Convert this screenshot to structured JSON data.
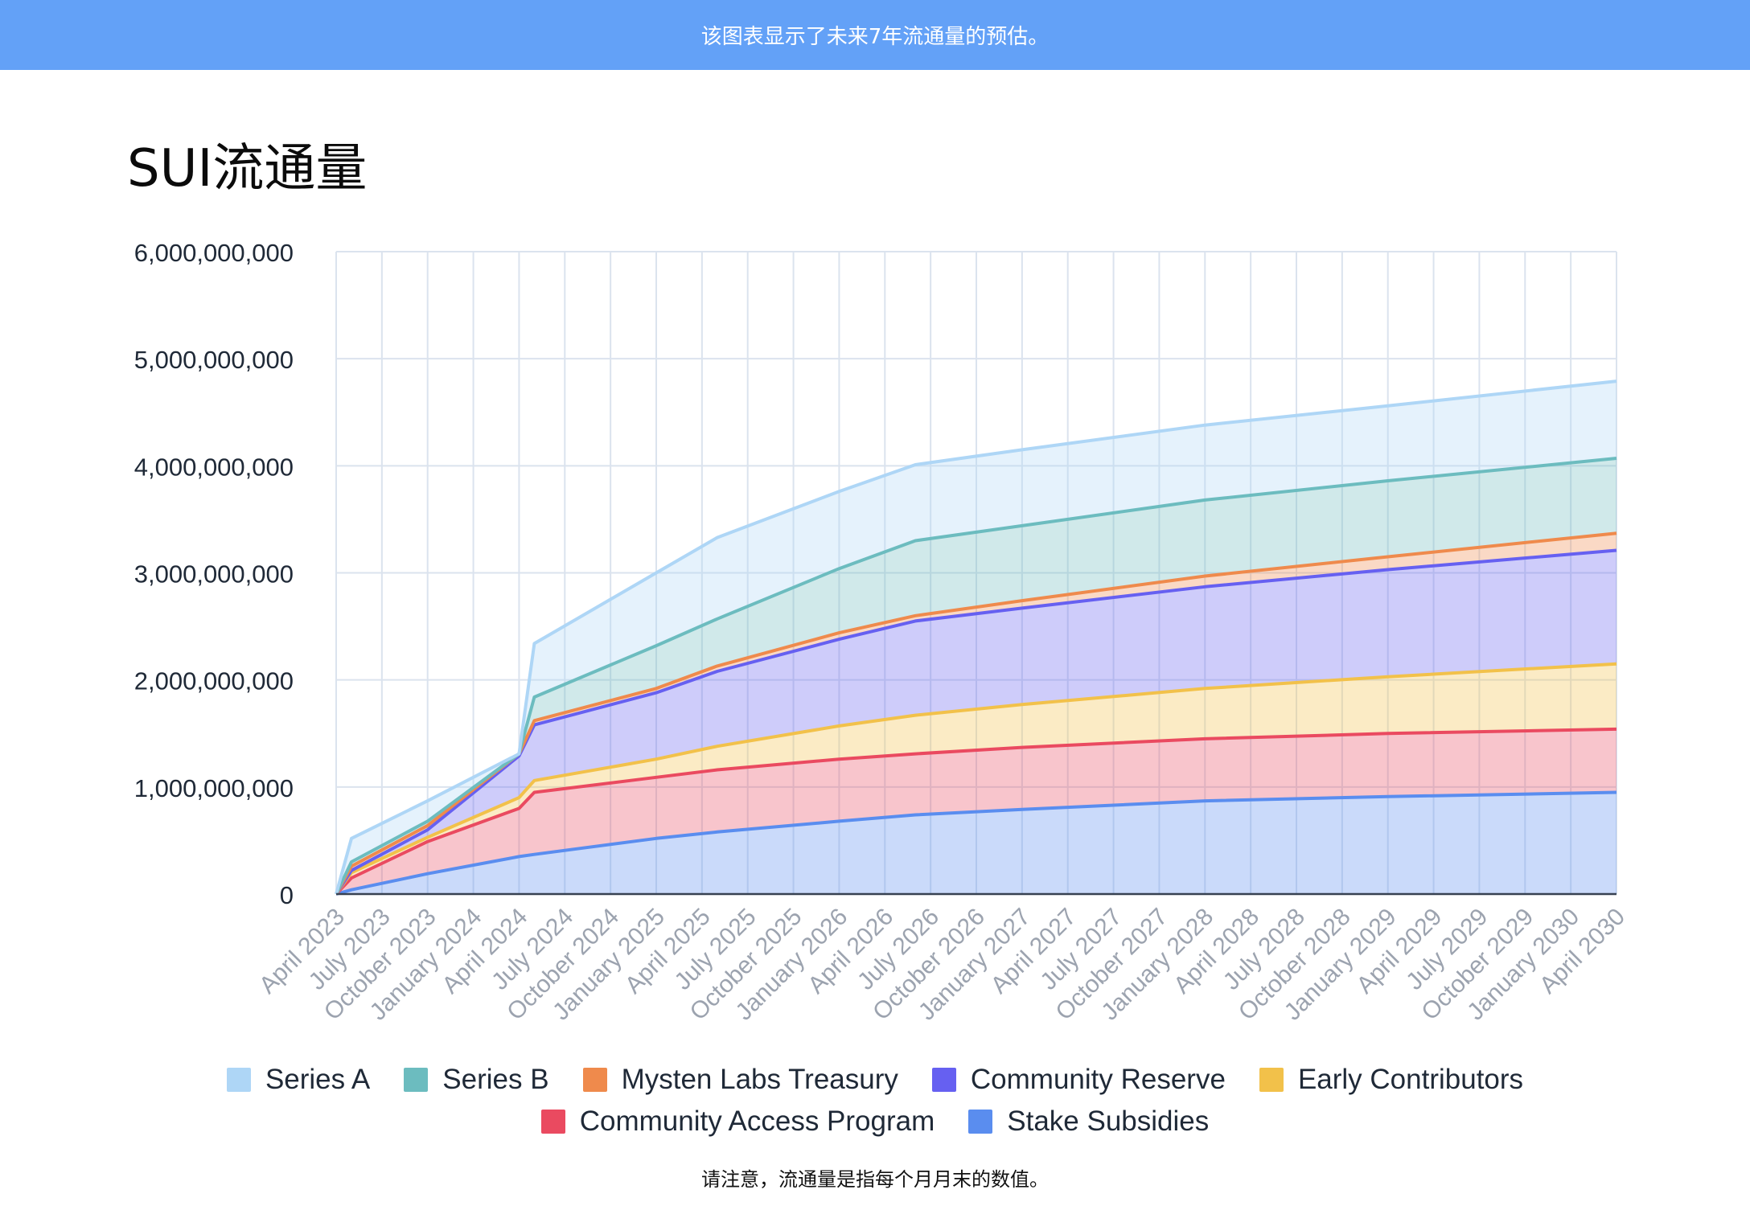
{
  "banner": {
    "text": "该图表显示了未来7年流通量的预估。"
  },
  "page_title": "SUI流通量",
  "footnote": "请注意，流通量是指每个月月末的数值。",
  "colors": {
    "series_a": "#aed6f6",
    "series_b": "#6cbcbf",
    "mysten": "#ef8a4c",
    "community_reserve": "#6660f1",
    "early_contributors": "#f2c14a",
    "community_access": "#ea4a60",
    "stake_subsidies": "#5a8def"
  },
  "chart_data": {
    "type": "area",
    "stacked": true,
    "title": "SUI流通量",
    "xlabel": "",
    "ylabel": "",
    "ylim": [
      0,
      6000000000
    ],
    "y_ticks": [
      "0",
      "1,000,000,000",
      "2,000,000,000",
      "3,000,000,000",
      "4,000,000,000",
      "5,000,000,000",
      "6,000,000,000"
    ],
    "x_ticks": [
      "April 2023",
      "July 2023",
      "October 2023",
      "January 2024",
      "April 2024",
      "July 2024",
      "October 2024",
      "January 2025",
      "April 2025",
      "July 2025",
      "October 2025",
      "January 2026",
      "April 2026",
      "July 2026",
      "October 2026",
      "January 2027",
      "April 2027",
      "July 2027",
      "October 2027",
      "January 2028",
      "April 2028",
      "July 2028",
      "October 2028",
      "January 2029",
      "April 2029",
      "July 2029",
      "October 2029",
      "January 2030",
      "April 2030"
    ],
    "grid": true,
    "legend_position": "bottom",
    "series_order_bottom_to_top": [
      "Stake Subsidies",
      "Community Access Program",
      "Early Contributors",
      "Community Reserve",
      "Mysten Labs Treasury",
      "Series B",
      "Series A"
    ],
    "cumulative_points": [
      {
        "x": "April 2023",
        "stake": 0,
        "cap": 0,
        "early": 0,
        "reserve": 0,
        "mysten": 0,
        "seriesB": 0,
        "seriesA": 0
      },
      {
        "x": "May 2023",
        "stake": 40000000,
        "cap": 150000000,
        "early": 200000000,
        "reserve": 220000000,
        "mysten": 260000000,
        "seriesB": 300000000,
        "seriesA": 520000000
      },
      {
        "x": "October 2023",
        "stake": 190000000,
        "cap": 490000000,
        "early": 530000000,
        "reserve": 600000000,
        "mysten": 640000000,
        "seriesB": 680000000,
        "seriesA": 870000000
      },
      {
        "x": "April 2024",
        "stake": 350000000,
        "cap": 800000000,
        "early": 900000000,
        "reserve": 1290000000,
        "mysten": 1310000000,
        "seriesB": 1310000000,
        "seriesA": 1310000000
      },
      {
        "x": "May 2024",
        "stake": 370000000,
        "cap": 950000000,
        "early": 1060000000,
        "reserve": 1580000000,
        "mysten": 1620000000,
        "seriesB": 1840000000,
        "seriesA": 2340000000
      },
      {
        "x": "January 2025",
        "stake": 520000000,
        "cap": 1090000000,
        "early": 1260000000,
        "reserve": 1880000000,
        "mysten": 1920000000,
        "seriesB": 2320000000,
        "seriesA": 3000000000
      },
      {
        "x": "May 2025",
        "stake": 580000000,
        "cap": 1160000000,
        "early": 1380000000,
        "reserve": 2080000000,
        "mysten": 2130000000,
        "seriesB": 2570000000,
        "seriesA": 3330000000
      },
      {
        "x": "January 2026",
        "stake": 680000000,
        "cap": 1260000000,
        "early": 1570000000,
        "reserve": 2380000000,
        "mysten": 2440000000,
        "seriesB": 3040000000,
        "seriesA": 3760000000
      },
      {
        "x": "June 2026",
        "stake": 740000000,
        "cap": 1310000000,
        "early": 1670000000,
        "reserve": 2550000000,
        "mysten": 2600000000,
        "seriesB": 3300000000,
        "seriesA": 4010000000
      },
      {
        "x": "January 2027",
        "stake": 790000000,
        "cap": 1370000000,
        "early": 1770000000,
        "reserve": 2670000000,
        "mysten": 2740000000,
        "seriesB": 3440000000,
        "seriesA": 4150000000
      },
      {
        "x": "January 2028",
        "stake": 870000000,
        "cap": 1450000000,
        "early": 1920000000,
        "reserve": 2870000000,
        "mysten": 2970000000,
        "seriesB": 3680000000,
        "seriesA": 4380000000
      },
      {
        "x": "January 2029",
        "stake": 910000000,
        "cap": 1500000000,
        "early": 2030000000,
        "reserve": 3030000000,
        "mysten": 3150000000,
        "seriesB": 3860000000,
        "seriesA": 4560000000
      },
      {
        "x": "April 2030",
        "stake": 950000000,
        "cap": 1540000000,
        "early": 2150000000,
        "reserve": 3210000000,
        "mysten": 3370000000,
        "seriesB": 4070000000,
        "seriesA": 4790000000
      }
    ],
    "legend_rows": [
      [
        {
          "name": "Series A",
          "key": "series_a"
        },
        {
          "name": "Series B",
          "key": "series_b"
        },
        {
          "name": "Mysten Labs Treasury",
          "key": "mysten"
        },
        {
          "name": "Community Reserve",
          "key": "community_reserve"
        },
        {
          "name": "Early Contributors",
          "key": "early_contributors"
        }
      ],
      [
        {
          "name": "Community Access Program",
          "key": "community_access"
        },
        {
          "name": "Stake Subsidies",
          "key": "stake_subsidies"
        }
      ]
    ]
  }
}
